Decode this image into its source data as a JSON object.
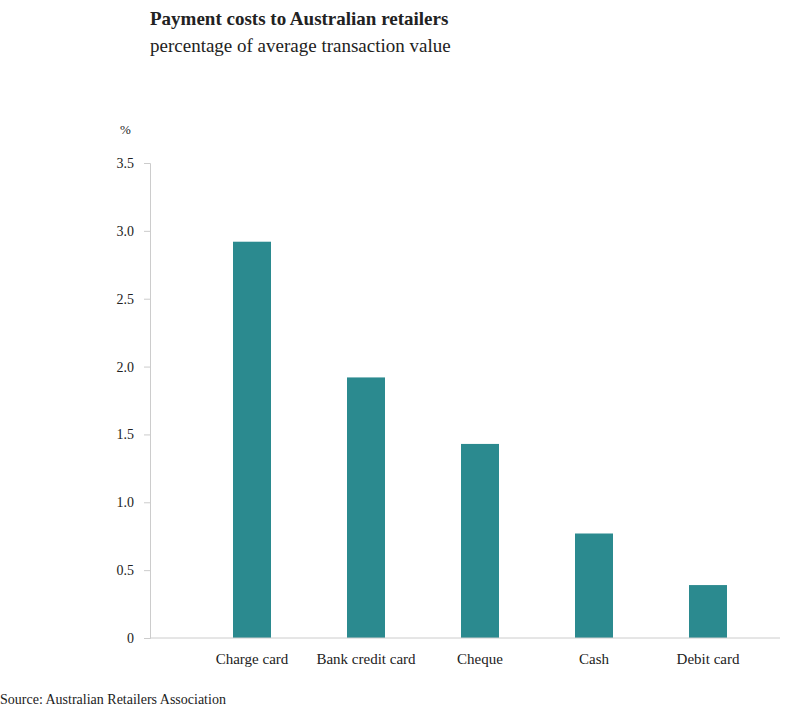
{
  "chart_data": {
    "type": "bar",
    "title": "Payment costs to Australian retailers",
    "subtitle": "percentage of average transaction value",
    "y_label": "%",
    "source": "Source: Australian Retailers Association",
    "categories": [
      "Charge card",
      "Bank credit card",
      "Cheque",
      "Cash",
      "Debit card"
    ],
    "values": [
      2.92,
      1.92,
      1.43,
      0.77,
      0.39
    ],
    "color": "#2b8a8f",
    "ylim": [
      0,
      3.5
    ],
    "yticks": [
      0,
      0.5,
      {
        "value": 1,
        "label": "1.0"
      },
      1.5,
      {
        "value": 2,
        "label": "2.0"
      },
      2.5,
      {
        "value": 3,
        "label": "3.0"
      },
      3.5
    ]
  }
}
